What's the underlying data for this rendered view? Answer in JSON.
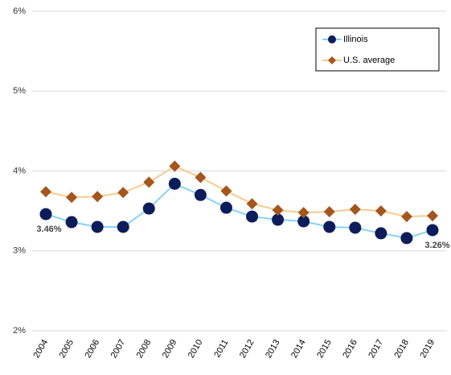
{
  "chart_data": {
    "type": "line",
    "categories": [
      "2004",
      "2005",
      "2006",
      "2007",
      "2008",
      "2009",
      "2010",
      "2011",
      "2012",
      "2013",
      "2014",
      "2015",
      "2016",
      "2017",
      "2018",
      "2019"
    ],
    "series": [
      {
        "name": "Illinois",
        "line_color": "#86d3f2",
        "marker_color": "#0c1d5a",
        "marker": "circle",
        "values": [
          3.46,
          3.36,
          3.3,
          3.3,
          3.53,
          3.84,
          3.7,
          3.54,
          3.43,
          3.39,
          3.37,
          3.3,
          3.29,
          3.22,
          3.16,
          3.26
        ],
        "value_labels": [
          "3.46%",
          null,
          null,
          null,
          null,
          null,
          null,
          null,
          null,
          null,
          null,
          null,
          null,
          null,
          null,
          "3.26%"
        ]
      },
      {
        "name": "U.S. average",
        "line_color": "#f7cb8e",
        "marker_color": "#a5561d",
        "marker": "diamond",
        "values": [
          3.74,
          3.67,
          3.68,
          3.73,
          3.86,
          4.06,
          3.92,
          3.75,
          3.59,
          3.51,
          3.48,
          3.49,
          3.52,
          3.5,
          3.43,
          3.44
        ]
      }
    ],
    "ylim": [
      2,
      6
    ],
    "yticks": [
      {
        "value": 2,
        "label": "2%"
      },
      {
        "value": 3,
        "label": "3%"
      },
      {
        "value": 4,
        "label": "4%"
      },
      {
        "value": 5,
        "label": "5%"
      },
      {
        "value": 6,
        "label": "6%"
      }
    ],
    "grid": true,
    "legend": "upper right"
  }
}
